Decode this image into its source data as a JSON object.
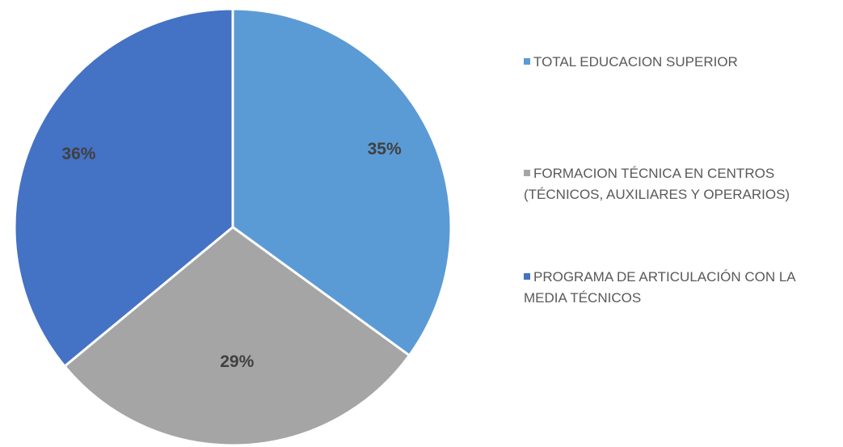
{
  "chart_data": {
    "type": "pie",
    "categories": [
      "TOTAL EDUCACION SUPERIOR",
      "FORMACION TÉCNICA EN CENTROS (TÉCNICOS, AUXILIARES Y OPERARIOS)",
      "PROGRAMA DE ARTICULACIÓN CON LA MEDIA TÉCNICOS"
    ],
    "values": [
      35,
      29,
      36
    ],
    "colors": [
      "#5b9bd5",
      "#a5a5a5",
      "#4472c4"
    ],
    "value_labels": [
      "35%",
      "29%",
      "36%"
    ],
    "legend": "right"
  }
}
